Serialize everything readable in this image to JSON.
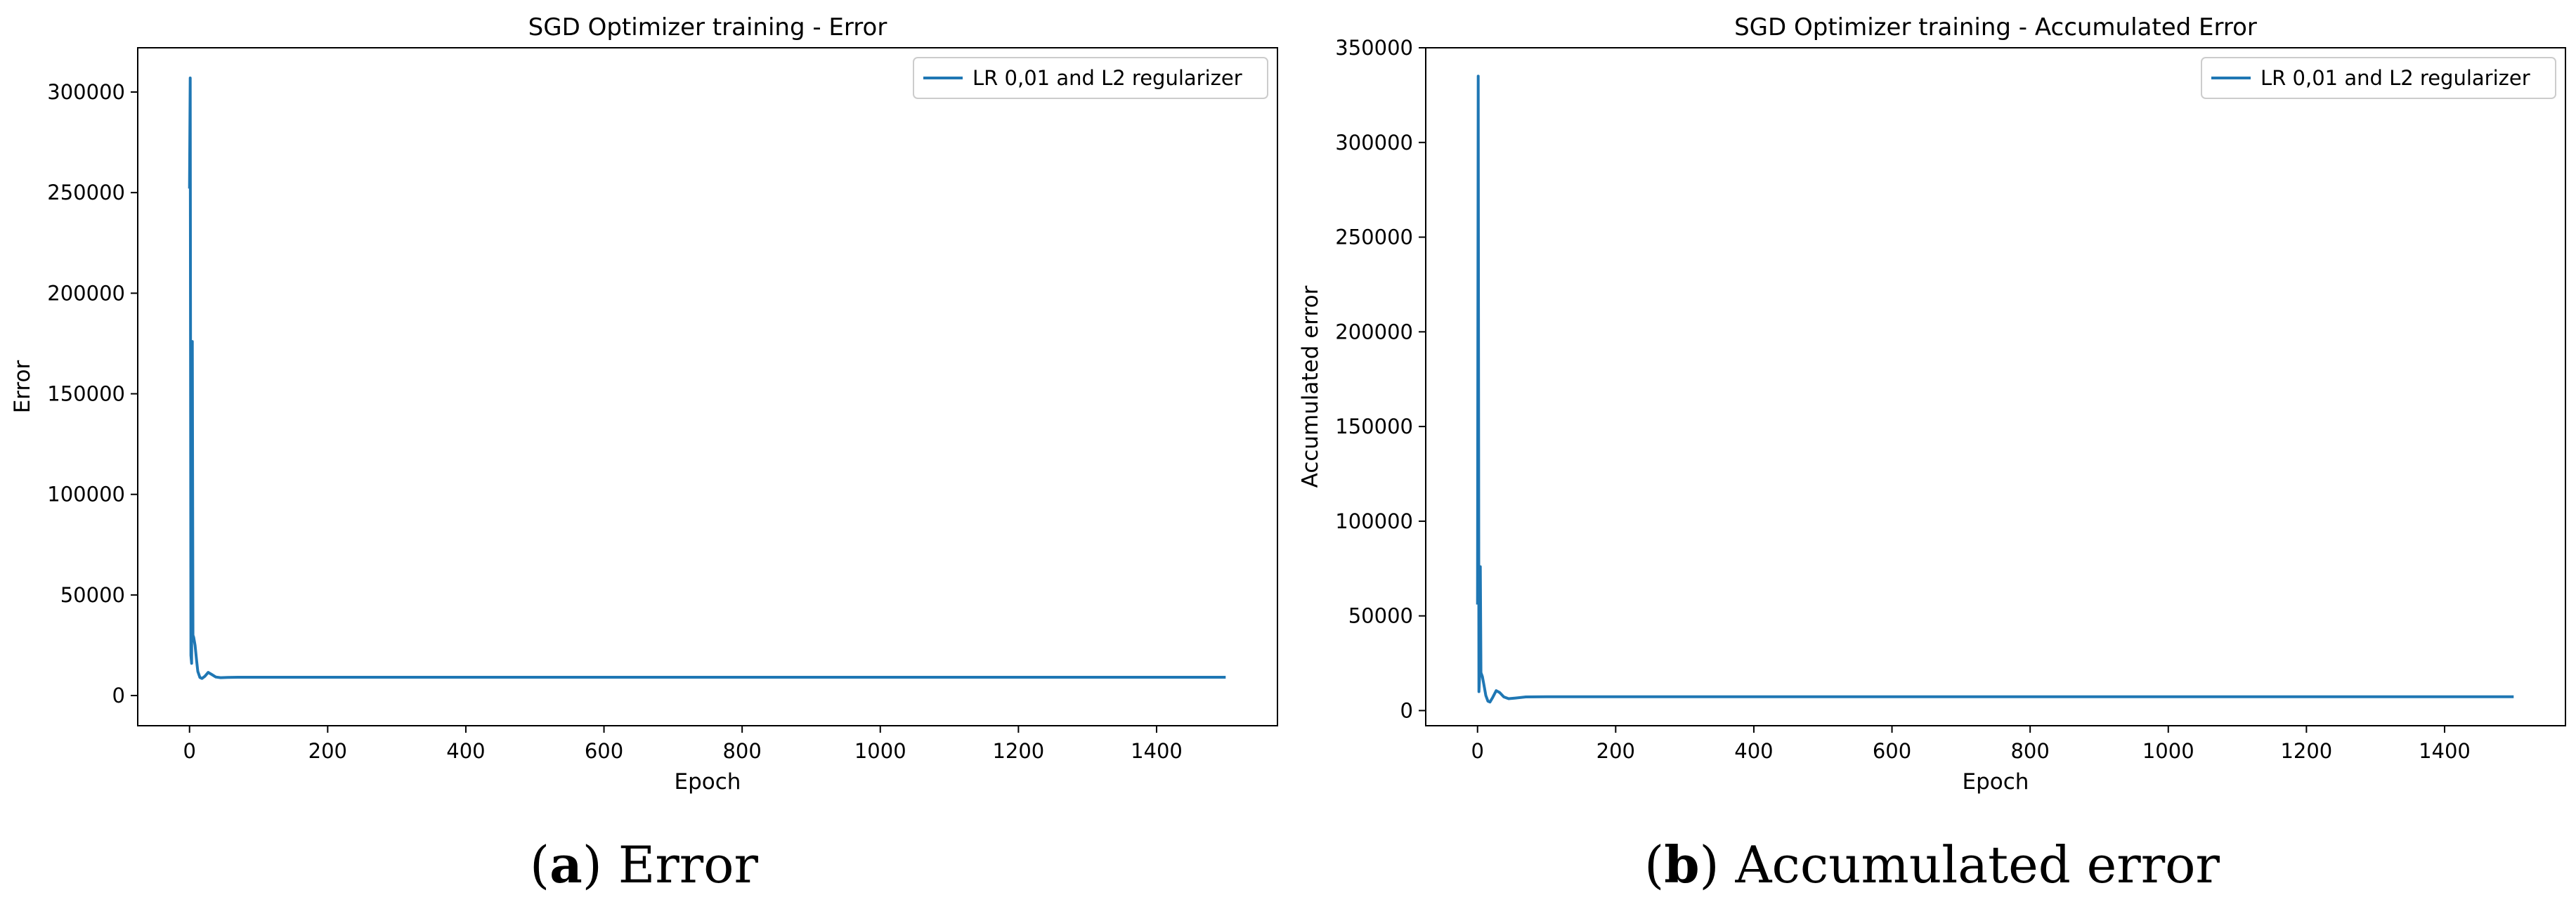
{
  "colors": {
    "series": "#1f77b4",
    "axes": "#000000",
    "background": "#ffffff"
  },
  "captions": [
    {
      "letter": "a",
      "text": "Error"
    },
    {
      "letter": "b",
      "text": "Accumulated error"
    }
  ],
  "chart_data": [
    {
      "type": "line",
      "title": "SGD Optimizer training - Error",
      "xlabel": "Epoch",
      "ylabel": "Error",
      "xlim": [
        -75,
        1575
      ],
      "ylim": [
        -15000,
        322000
      ],
      "xticks": [
        0,
        200,
        400,
        600,
        800,
        1000,
        1200,
        1400
      ],
      "yticks": [
        0,
        50000,
        100000,
        150000,
        200000,
        250000,
        300000
      ],
      "grid": false,
      "legend": "top-right",
      "series": [
        {
          "name": "LR 0,01 and L2 regularizer",
          "x": [
            0,
            1,
            2,
            3,
            4,
            5,
            6,
            7,
            8,
            10,
            12,
            15,
            18,
            22,
            27,
            32,
            38,
            45,
            55,
            70,
            100,
            200,
            400,
            600,
            800,
            1000,
            1200,
            1400,
            1500
          ],
          "y": [
            252000,
            307000,
            20000,
            16000,
            176000,
            30000,
            29000,
            27000,
            25000,
            18000,
            12000,
            9000,
            8500,
            9500,
            11500,
            10500,
            9200,
            8900,
            9000,
            9100,
            9100,
            9100,
            9100,
            9100,
            9100,
            9100,
            9100,
            9100,
            9100
          ]
        }
      ]
    },
    {
      "type": "line",
      "title": "SGD Optimizer training - Accumulated Error",
      "xlabel": "Epoch",
      "ylabel": "Accumulated error",
      "xlim": [
        -75,
        1575
      ],
      "ylim": [
        -8000,
        350000
      ],
      "xticks": [
        0,
        200,
        400,
        600,
        800,
        1000,
        1200,
        1400
      ],
      "yticks": [
        0,
        50000,
        100000,
        150000,
        200000,
        250000,
        300000,
        350000
      ],
      "grid": false,
      "legend": "top-right",
      "series": [
        {
          "name": "LR 0,01 and L2 regularizer",
          "x": [
            0,
            1,
            2,
            3,
            4,
            5,
            6,
            7,
            8,
            10,
            12,
            15,
            18,
            22,
            27,
            32,
            38,
            45,
            55,
            70,
            100,
            200,
            400,
            600,
            800,
            1000,
            1200,
            1400,
            1500
          ],
          "y": [
            56000,
            335000,
            10000,
            18000,
            76000,
            20000,
            19000,
            18000,
            16000,
            12000,
            8000,
            5000,
            4500,
            7000,
            10500,
            9500,
            7200,
            6300,
            6600,
            7200,
            7300,
            7300,
            7300,
            7300,
            7300,
            7300,
            7300,
            7300,
            7300
          ]
        }
      ]
    }
  ]
}
